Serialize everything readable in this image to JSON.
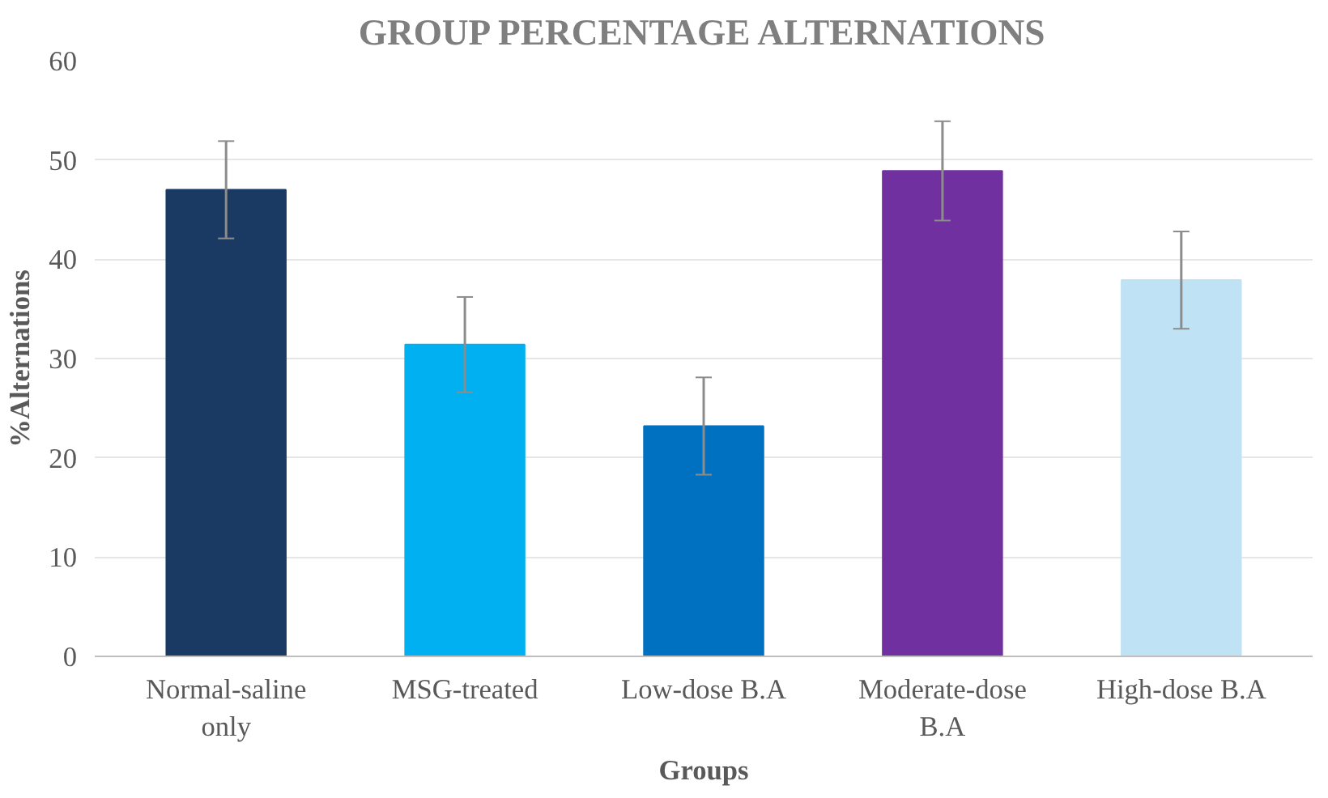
{
  "chart_data": {
    "type": "bar",
    "title": "GROUP PERCENTAGE ALTERNATIONS",
    "xlabel": "Groups",
    "ylabel": "%Alternations",
    "categories": [
      "Normal-saline\nonly",
      "MSG-treated",
      "Low-dose B.A",
      "Moderate-dose\nB.A",
      "High-dose B.A"
    ],
    "values": [
      47,
      31.4,
      23.2,
      48.9,
      37.9
    ],
    "errors": [
      4.9,
      4.8,
      4.9,
      5.0,
      4.9
    ],
    "colors": [
      "#1a3a63",
      "#00b0f0",
      "#0070c0",
      "#7030a0",
      "#c0e2f5"
    ],
    "ylim": [
      0,
      60
    ],
    "yticks": [
      0,
      10,
      20,
      30,
      40,
      50,
      60
    ],
    "grid": "y"
  }
}
